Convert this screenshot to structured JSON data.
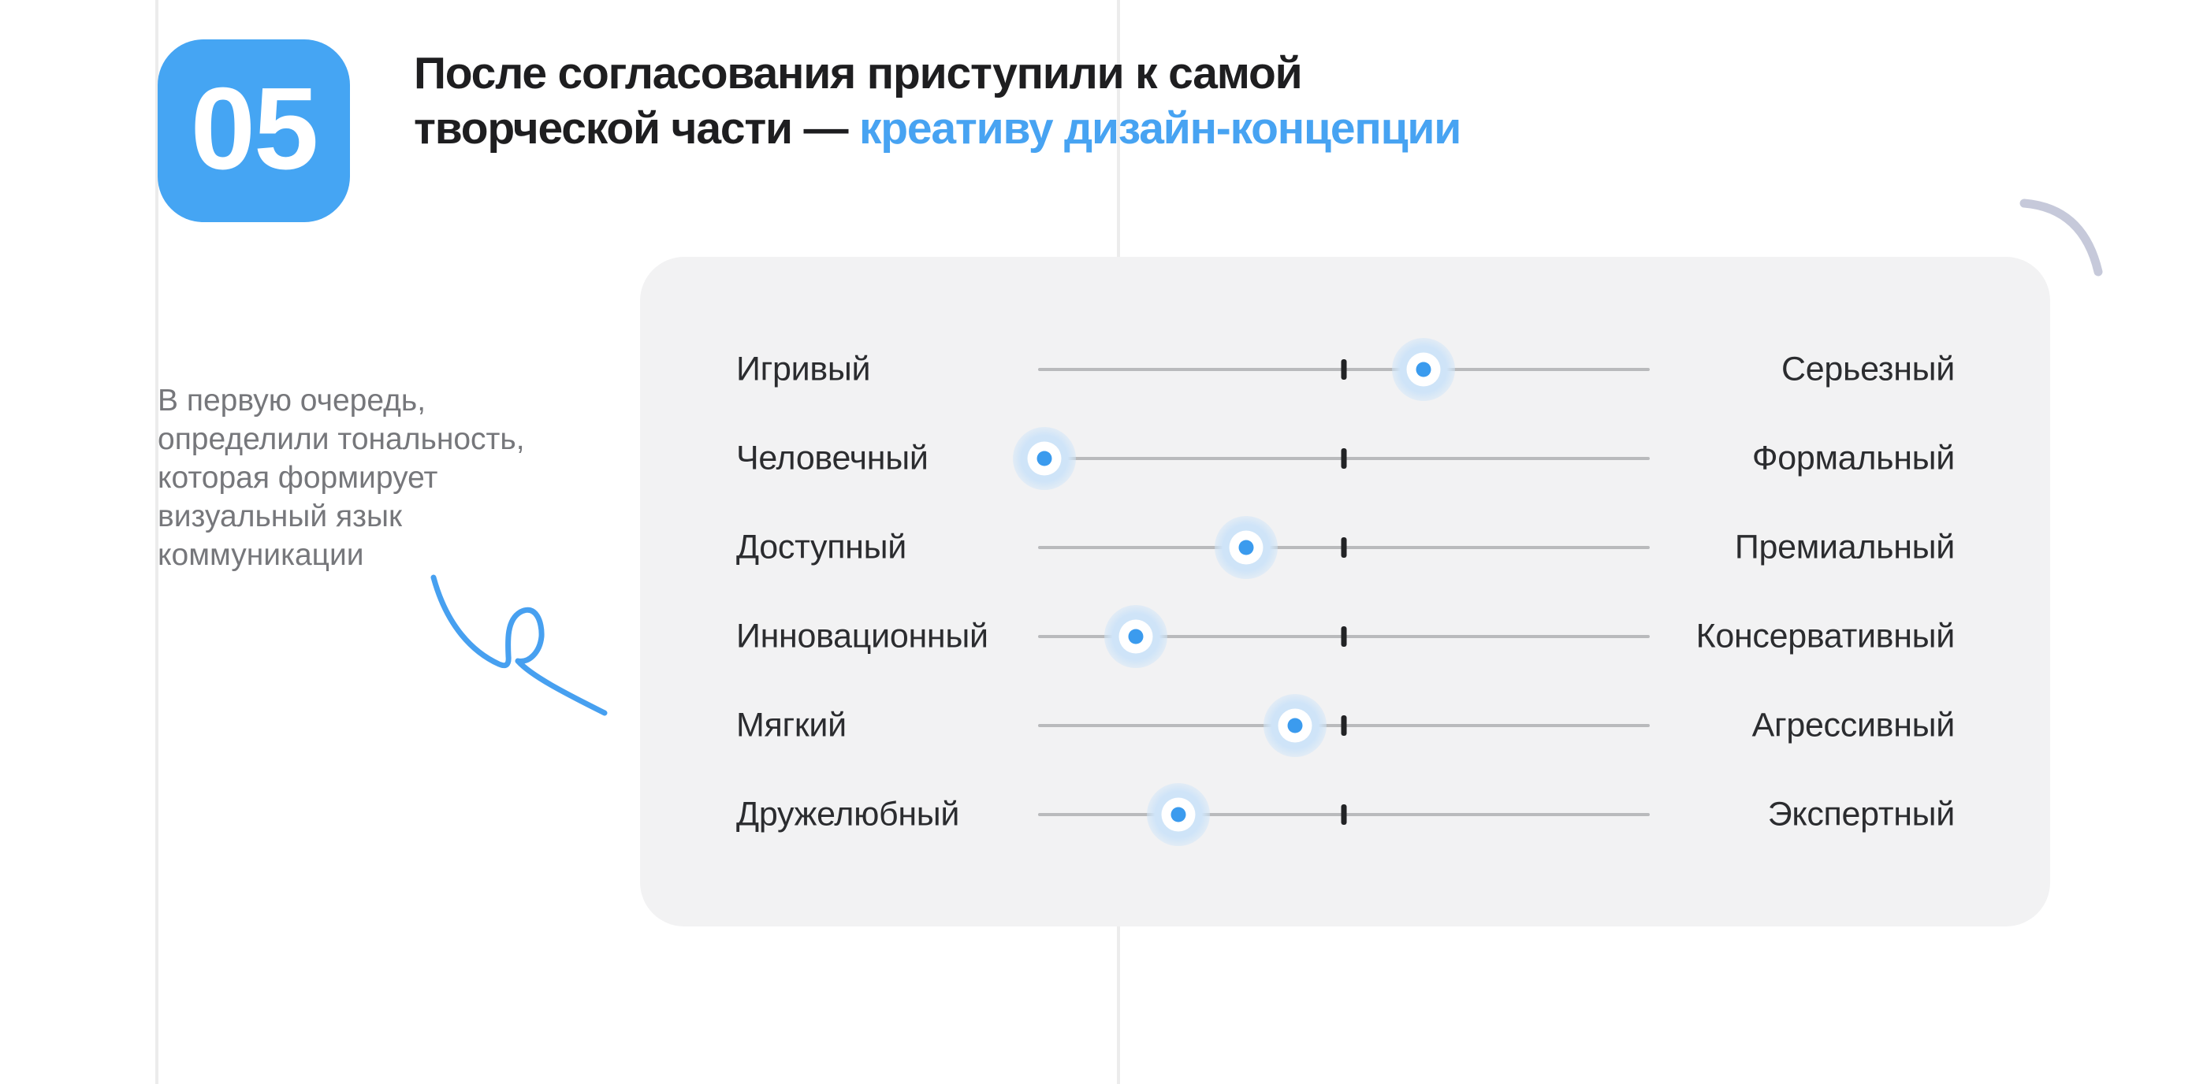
{
  "badge": {
    "number": "05"
  },
  "heading": {
    "line1": "После согласования приступили к самой",
    "line2_dark": "творческой части — ",
    "line2_accent": "креативу дизайн-концепции"
  },
  "side_note": {
    "lines": [
      "В первую очередь,",
      "определили тональность,",
      "которая формирует",
      "визуальный язык",
      "коммуникации"
    ]
  },
  "card": {
    "rows": [
      {
        "left": "Игривый",
        "right": "Серьезный",
        "value": 0.63
      },
      {
        "left": "Человечный",
        "right": "Формальный",
        "value": 0.01
      },
      {
        "left": "Доступный",
        "right": "Премиальный",
        "value": 0.34
      },
      {
        "left": "Инновационный",
        "right": "Консервативный",
        "value": 0.16
      },
      {
        "left": "Мягкий",
        "right": "Агрессивный",
        "value": 0.42
      },
      {
        "left": "Дружелюбный",
        "right": "Экспертный",
        "value": 0.23
      }
    ],
    "row_top_start": 98,
    "row_spacing": 113
  },
  "colors": {
    "accent_blue": "#47a3f2",
    "badge_blue": "#45a5f3",
    "dot_blue": "#3b9bee",
    "card_bg": "#f2f2f3",
    "squiggle_blue": "#47a0f0",
    "arc_lavender": "#c6c9da"
  }
}
